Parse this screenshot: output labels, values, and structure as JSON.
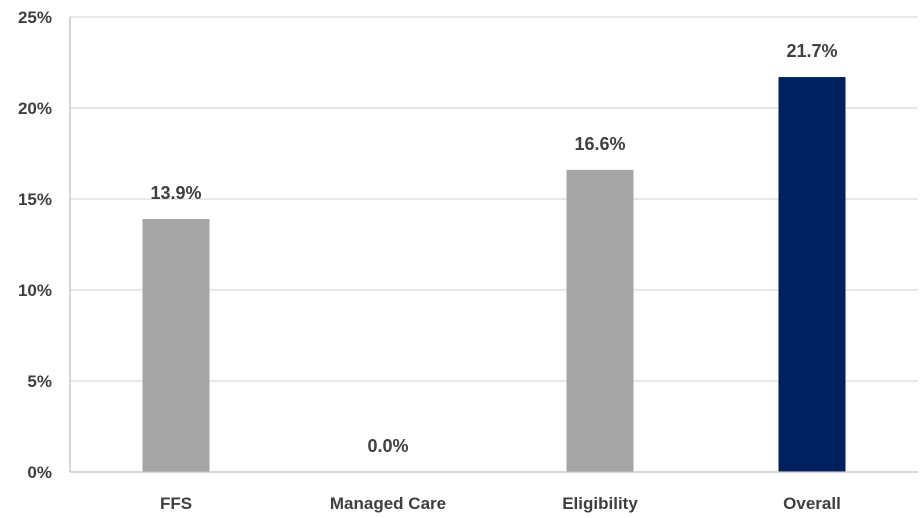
{
  "chart_data": {
    "type": "bar",
    "title": "",
    "xlabel": "",
    "ylabel": "",
    "categories": [
      "FFS",
      "Managed Care",
      "Eligibility",
      "Overall"
    ],
    "values": [
      13.9,
      0.0,
      16.6,
      21.7
    ],
    "data_labels": [
      "13.9%",
      "0.0%",
      "16.6%",
      "21.7%"
    ],
    "ylim": [
      0,
      25
    ],
    "yticks": [
      0,
      5,
      10,
      15,
      20,
      25
    ],
    "ytick_labels": [
      "0%",
      "5%",
      "10%",
      "15%",
      "20%",
      "25%"
    ],
    "grid": true,
    "legend": "none",
    "colors": {
      "bar": "#a6a6a6",
      "highlight_bar": "#002060",
      "gridline": "#d9d9d9",
      "axis": "#bfbfbf",
      "text": "#3f3f3f"
    },
    "highlight_category": "Overall"
  }
}
